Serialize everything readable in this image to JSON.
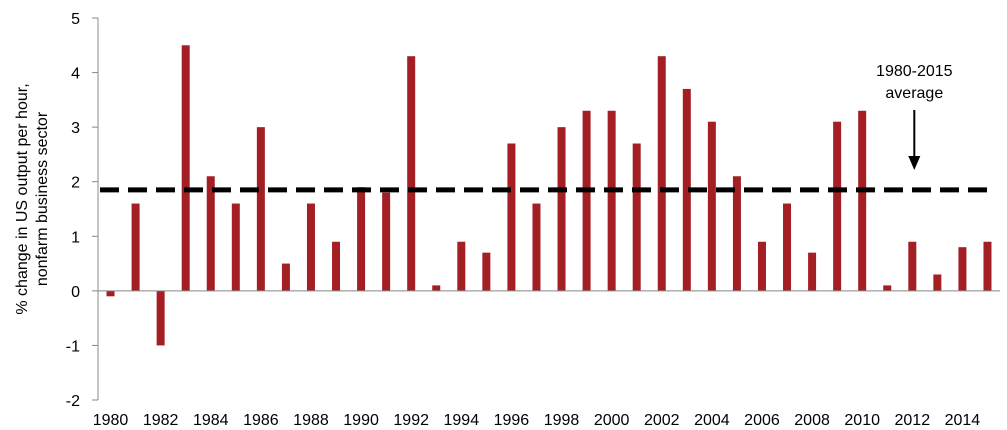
{
  "chart_data": {
    "type": "bar",
    "title": "",
    "xlabel": "",
    "ylabel_lines": [
      "% change in US output per hour,",
      "nonfarm business sector"
    ],
    "ylim": [
      -2,
      5
    ],
    "yticks": [
      -2,
      -1,
      0,
      1,
      2,
      3,
      4,
      5
    ],
    "x": [
      1980,
      1981,
      1982,
      1983,
      1984,
      1985,
      1986,
      1987,
      1988,
      1989,
      1990,
      1991,
      1992,
      1993,
      1994,
      1995,
      1996,
      1997,
      1998,
      1999,
      2000,
      2001,
      2002,
      2003,
      2004,
      2005,
      2006,
      2007,
      2008,
      2009,
      2010,
      2011,
      2012,
      2013,
      2014,
      2015
    ],
    "xtick_labels": [
      "1980",
      "1982",
      "1984",
      "1986",
      "1988",
      "1990",
      "1992",
      "1994",
      "1996",
      "1998",
      "2000",
      "2002",
      "2004",
      "2006",
      "2008",
      "2010",
      "2012",
      "2014"
    ],
    "values": [
      -0.1,
      1.6,
      -1.0,
      4.5,
      2.1,
      1.6,
      3.0,
      0.5,
      1.6,
      0.9,
      1.9,
      1.8,
      4.3,
      0.1,
      0.9,
      0.7,
      2.7,
      1.6,
      3.0,
      3.3,
      3.3,
      2.7,
      4.3,
      3.7,
      3.1,
      2.1,
      0.9,
      1.6,
      0.7,
      3.1,
      3.3,
      0.1,
      0.9,
      0.3,
      0.8,
      0.9
    ],
    "average": {
      "value": 1.85,
      "label_lines": [
        "1980-2015",
        "average"
      ],
      "arrow_at_year": 2012
    },
    "colors": {
      "bar": "#a31f24",
      "average_line": "#000000",
      "axis": "#888888"
    },
    "grid": false,
    "legend": "none"
  }
}
